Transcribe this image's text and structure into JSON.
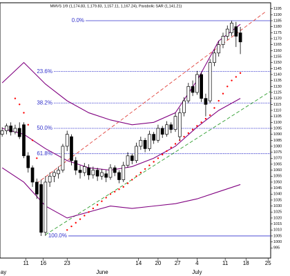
{
  "chart_data": {
    "type": "candlestick",
    "title": "MMVS 1/9 (1,174.83, 1,179.83, 1,157.11, 1,167.24), Parabolic SAR (1,141.21)",
    "x": [
      0,
      1,
      2,
      3,
      4,
      5,
      6,
      7,
      8,
      9,
      10,
      11,
      12,
      13,
      14,
      15,
      16,
      17,
      18,
      19,
      20,
      21,
      22,
      23,
      24,
      25,
      26,
      27,
      28,
      29,
      30,
      31,
      32,
      33,
      34,
      35,
      36,
      37,
      38,
      39,
      40,
      41,
      42,
      43,
      44,
      45,
      46,
      47,
      48,
      49,
      50,
      51,
      52,
      53,
      54,
      55
    ],
    "open": [
      1090,
      1093,
      1097,
      1092,
      1095,
      1098,
      1072,
      1062,
      1050,
      1048,
      1008,
      1050,
      1055,
      1057,
      1060,
      1080,
      1088,
      1068,
      1060,
      1058,
      1062,
      1056,
      1060,
      1055,
      1057,
      1054,
      1062,
      1058,
      1052,
      1064,
      1072,
      1068,
      1080,
      1085,
      1078,
      1090,
      1085,
      1095,
      1090,
      1098,
      1094,
      1088,
      1108,
      1118,
      1130,
      1125,
      1140,
      1120,
      1118,
      1150,
      1158,
      1165,
      1172,
      1175,
      1180,
      1174.83
    ],
    "high": [
      1096,
      1099,
      1100,
      1098,
      1100,
      1100,
      1075,
      1064,
      1053,
      1052,
      1055,
      1058,
      1060,
      1063,
      1082,
      1093,
      1090,
      1071,
      1064,
      1066,
      1065,
      1063,
      1062,
      1061,
      1060,
      1065,
      1064,
      1060,
      1067,
      1075,
      1074,
      1083,
      1088,
      1087,
      1093,
      1092,
      1098,
      1097,
      1101,
      1100,
      1108,
      1112,
      1121,
      1133,
      1135,
      1143,
      1142,
      1124,
      1153,
      1161,
      1168,
      1175,
      1181,
      1185,
      1184,
      1179.83
    ],
    "low": [
      1088,
      1090,
      1089,
      1090,
      1086,
      1070,
      1058,
      1046,
      1036,
      1005,
      1005,
      1046,
      1050,
      1053,
      1058,
      1076,
      1064,
      1056,
      1053,
      1055,
      1052,
      1053,
      1051,
      1052,
      1050,
      1052,
      1055,
      1049,
      1050,
      1062,
      1065,
      1066,
      1077,
      1075,
      1076,
      1082,
      1083,
      1087,
      1088,
      1091,
      1092,
      1085,
      1105,
      1116,
      1122,
      1123,
      1117,
      1105,
      1116,
      1147,
      1155,
      1162,
      1169,
      1172,
      1163,
      1157.11
    ],
    "close": [
      1093,
      1097,
      1092,
      1095,
      1088,
      1072,
      1062,
      1050,
      1040,
      1008,
      1050,
      1055,
      1058,
      1060,
      1080,
      1090,
      1068,
      1060,
      1058,
      1063,
      1056,
      1060,
      1055,
      1058,
      1054,
      1062,
      1058,
      1052,
      1064,
      1072,
      1068,
      1080,
      1085,
      1078,
      1090,
      1085,
      1095,
      1090,
      1098,
      1094,
      1105,
      1108,
      1118,
      1130,
      1125,
      1140,
      1120,
      1115,
      1150,
      1158,
      1165,
      1172,
      1178,
      1183,
      1172,
      1167.24
    ],
    "up_color": "#ffffff",
    "down_color": "#000000",
    "bands": {
      "color": "#800080",
      "x": [
        0,
        5,
        10,
        15,
        20,
        25,
        30,
        35,
        40,
        45,
        50,
        55
      ],
      "upper": [
        1133,
        1150,
        1132,
        1118,
        1108,
        1102,
        1098,
        1100,
        1108,
        1135,
        1168,
        1182
      ],
      "middle": [
        1095,
        1090,
        1078,
        1068,
        1062,
        1060,
        1063,
        1070,
        1080,
        1096,
        1110,
        1120
      ],
      "lower": [
        1062,
        1050,
        1030,
        1020,
        1025,
        1030,
        1028,
        1030,
        1032,
        1036,
        1042,
        1048
      ]
    },
    "sar": {
      "color": "#ff0000",
      "x": [
        3,
        4,
        5,
        6,
        7,
        8,
        15,
        16,
        17,
        18,
        19,
        20,
        21,
        22,
        23,
        24,
        25,
        26,
        27,
        28,
        29,
        30,
        31,
        32,
        33,
        34,
        35,
        36,
        37,
        38,
        39,
        40,
        41,
        42,
        43,
        44,
        45,
        46,
        47,
        48,
        49,
        50,
        51,
        52,
        53,
        54,
        55
      ],
      "values": [
        1120,
        1115,
        1108,
        1098,
        1085,
        1070,
        1010,
        1013,
        1016,
        1019,
        1022,
        1025,
        1028,
        1031,
        1034,
        1037,
        1040,
        1042,
        1044,
        1046,
        1049,
        1052,
        1055,
        1058,
        1061,
        1064,
        1067,
        1070,
        1073,
        1076,
        1079,
        1082,
        1085,
        1088,
        1091,
        1094,
        1097,
        1100,
        1103,
        1106,
        1112,
        1118,
        1124,
        1130,
        1135,
        1138,
        1141.21
      ]
    },
    "trend_lines": [
      {
        "color": "#e0403a",
        "x": [
          8,
          61
        ],
        "values": [
          1049,
          1193
        ]
      },
      {
        "color": "#2e9e2e",
        "x": [
          10,
          62
        ],
        "values": [
          1006,
          1126
        ]
      }
    ],
    "fib_color": "#3333cc",
    "fib_levels": [
      {
        "label": "0.0%",
        "value": 1185
      },
      {
        "label": "23.6%",
        "value": 1142.5
      },
      {
        "label": "38.2%",
        "value": 1116.2
      },
      {
        "label": "50.0%",
        "value": 1095
      },
      {
        "label": "61.8%",
        "value": 1073.8
      },
      {
        "label": "100.0%",
        "value": 1005
      }
    ],
    "xlim": [
      -0.5,
      62
    ],
    "xticks": [
      {
        "value": 5.5,
        "label": "11"
      },
      {
        "value": 9.5,
        "label": "16"
      },
      {
        "value": 15,
        "label": "23"
      },
      {
        "value": 31.5,
        "label": "14"
      },
      {
        "value": 36,
        "label": "20"
      },
      {
        "value": 40.5,
        "label": "27"
      },
      {
        "value": 45,
        "label": "4"
      },
      {
        "value": 51.5,
        "label": "11"
      },
      {
        "value": 56.3,
        "label": "18"
      },
      {
        "value": 61.4,
        "label": "25"
      }
    ],
    "month_ticks": [
      {
        "value": 0.3,
        "label": "ay"
      },
      {
        "value": 23.1,
        "label": "June"
      },
      {
        "value": 45,
        "label": "July"
      }
    ],
    "ylim": [
      986.5,
      1200
    ],
    "yticks": [
      995,
      1000,
      1005,
      1010,
      1015,
      1020,
      1025,
      1030,
      1035,
      1040,
      1045,
      1050,
      1055,
      1060,
      1065,
      1070,
      1075,
      1080,
      1085,
      1090,
      1095,
      1100,
      1105,
      1110,
      1115,
      1120,
      1125,
      1130,
      1135,
      1140,
      1145,
      1150,
      1155,
      1160,
      1165,
      1170,
      1175,
      1180,
      1185,
      1190,
      1195
    ]
  }
}
